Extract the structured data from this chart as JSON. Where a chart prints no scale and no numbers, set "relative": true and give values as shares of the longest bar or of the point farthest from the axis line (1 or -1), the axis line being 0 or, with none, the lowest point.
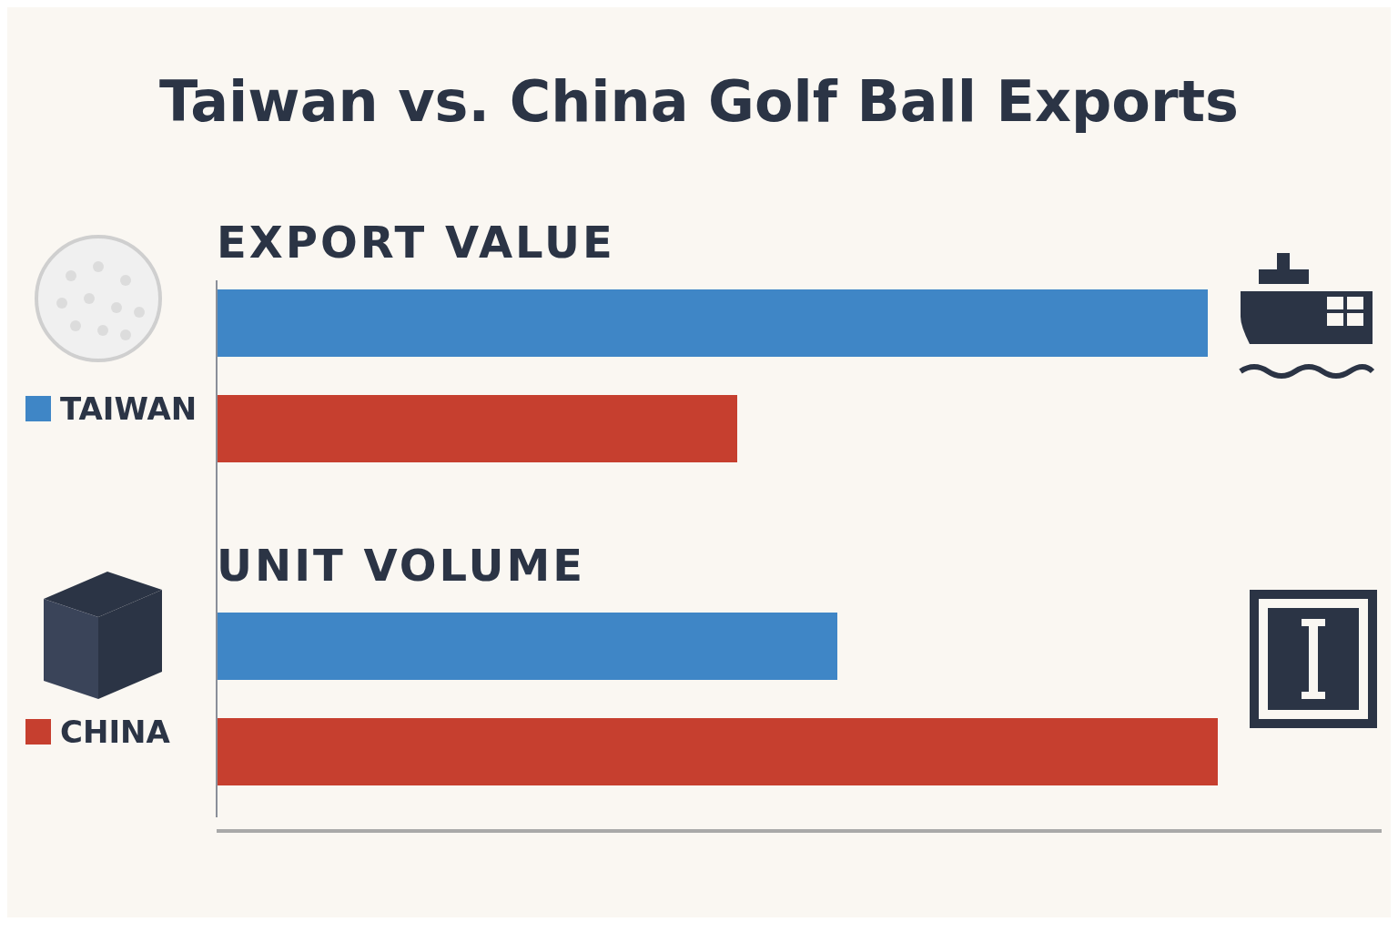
{
  "chart_data": {
    "type": "bar",
    "orientation": "horizontal",
    "relative": true,
    "title": "Taiwan vs. China Golf Ball Exports",
    "categories": [
      "EXPORT VALUE",
      "UNIT VOLUME"
    ],
    "legend": "left",
    "series": [
      {
        "name": "TAIWAN",
        "color": "#3f86c6",
        "values": [
          0.99,
          0.62
        ]
      },
      {
        "name": "CHINA",
        "color": "#c63f2f",
        "values": [
          0.52,
          1
        ]
      }
    ]
  }
}
